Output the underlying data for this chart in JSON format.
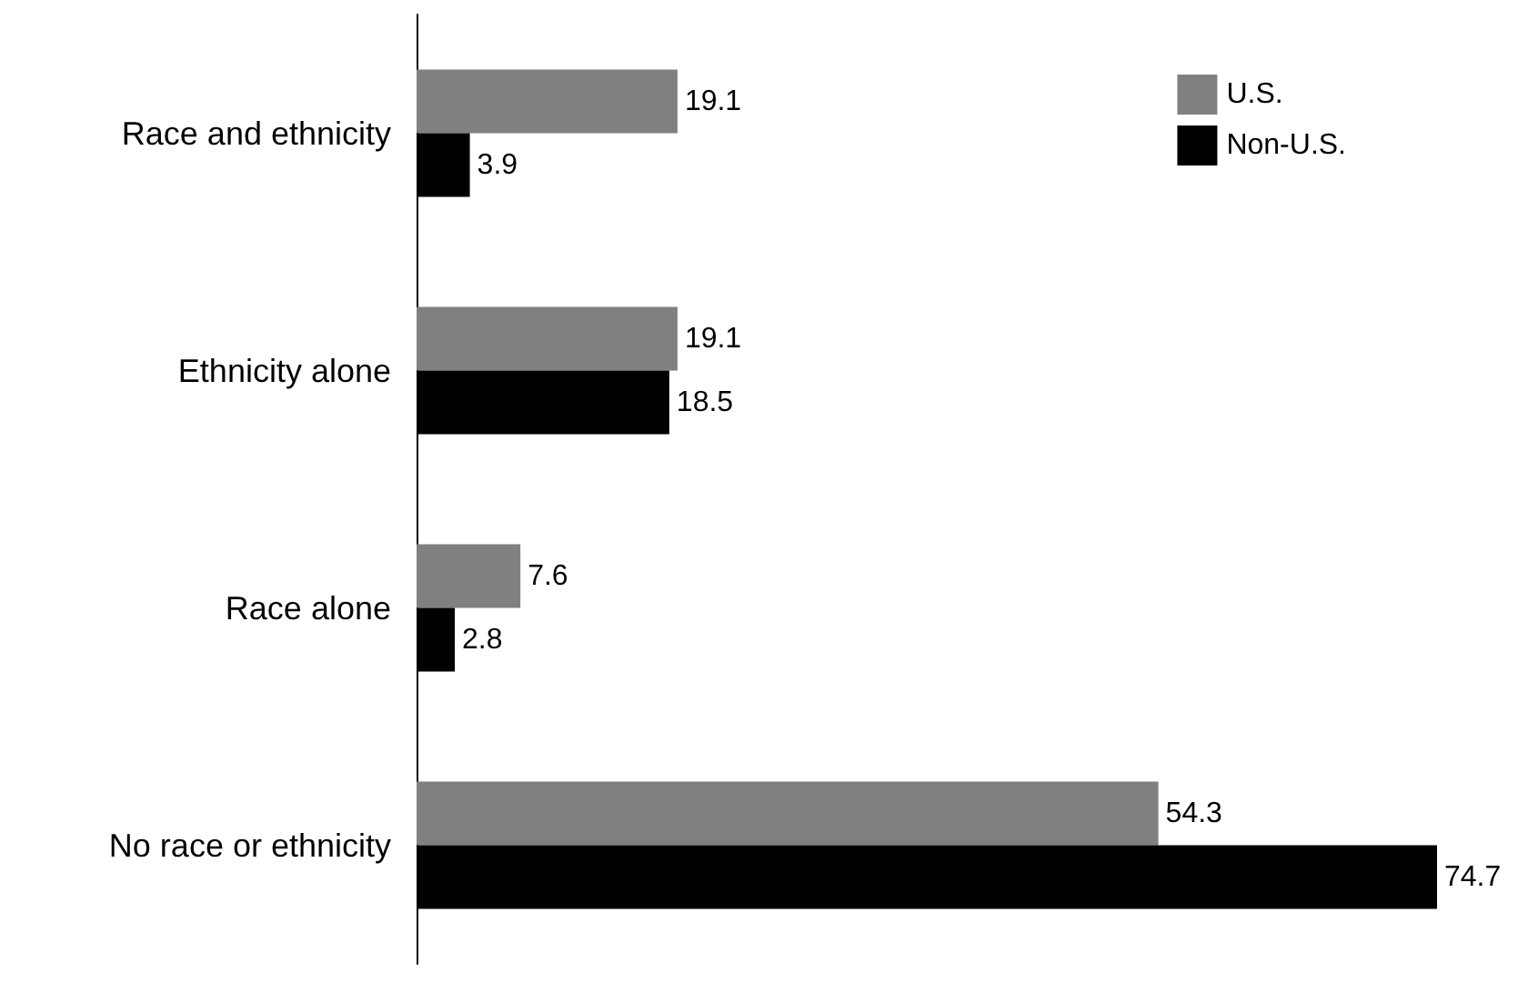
{
  "chart_data": {
    "type": "bar",
    "orientation": "horizontal",
    "categories": [
      "Race and ethnicity",
      "Ethnicity alone",
      "Race alone",
      "No race or ethnicity"
    ],
    "series": [
      {
        "name": "U.S.",
        "color": "#808080",
        "values": [
          19.1,
          19.1,
          7.6,
          54.3
        ]
      },
      {
        "name": "Non-U.S.",
        "color": "#000000",
        "values": [
          3.9,
          18.5,
          2.8,
          74.7
        ]
      }
    ],
    "data_labels": true,
    "legend": "top right"
  }
}
